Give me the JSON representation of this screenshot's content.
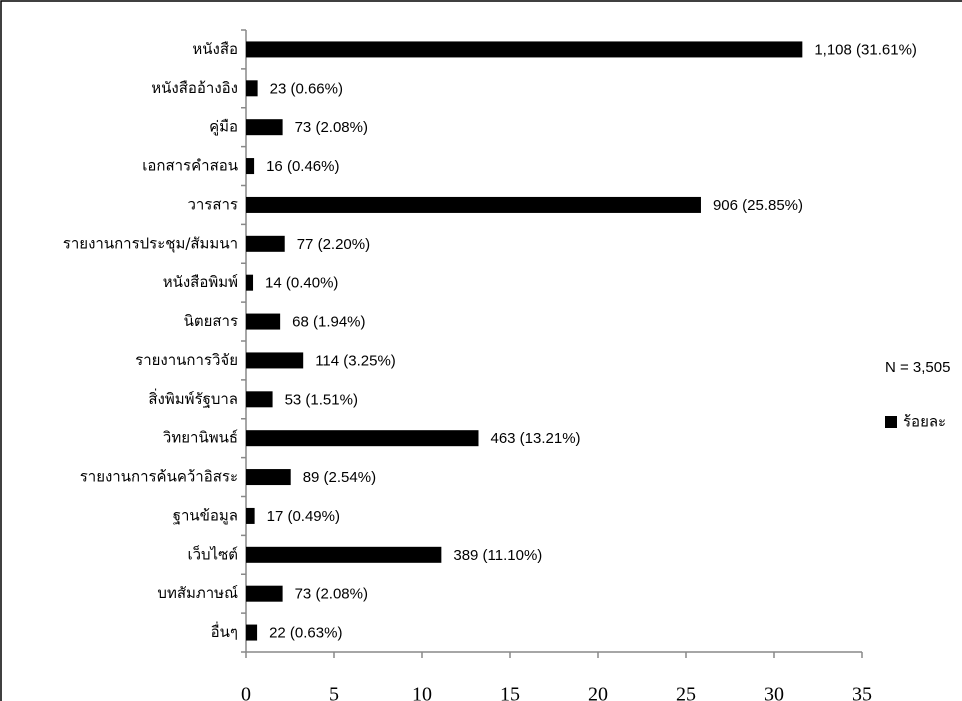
{
  "chart_data": {
    "type": "hbar",
    "categories": [
      "หนังสือ",
      "หนังสืออ้างอิง",
      "คู่มือ",
      "เอกสารคำสอน",
      "วารสาร",
      "รายงานการประชุม/สัมมนา",
      "หนังสือพิมพ์",
      "นิตยสาร",
      "รายงานการวิจัย",
      "สิ่งพิมพ์รัฐบาล",
      "วิทยานิพนธ์",
      "รายงานการค้นคว้าอิสระ",
      "ฐานข้อมูล",
      "เว็บไซต์",
      "บทสัมภาษณ์",
      "อื่นๆ"
    ],
    "series": [
      {
        "name": "ร้อยละ",
        "color": "#000000",
        "values": [
          31.61,
          0.66,
          2.08,
          0.46,
          25.85,
          2.2,
          0.4,
          1.94,
          3.25,
          1.51,
          13.21,
          2.54,
          0.49,
          11.1,
          2.08,
          0.63
        ],
        "value_labels": [
          "1,108 (31.61%)",
          "23 (0.66%)",
          "73 (2.08%)",
          "16 (0.46%)",
          "906 (25.85%)",
          "77 (2.20%)",
          "14 (0.40%)",
          "68 (1.94%)",
          "114 (3.25%)",
          "53 (1.51%)",
          "463 (13.21%)",
          "89 (2.54%)",
          "17 (0.49%)",
          "389 (11.10%)",
          "73 (2.08%)",
          "22 (0.63%)"
        ]
      }
    ],
    "annotation": "N = 3,505",
    "xlim": [
      0,
      35
    ],
    "xticks": [
      0,
      5,
      10,
      15,
      20,
      25,
      30,
      35
    ],
    "grid": false
  }
}
